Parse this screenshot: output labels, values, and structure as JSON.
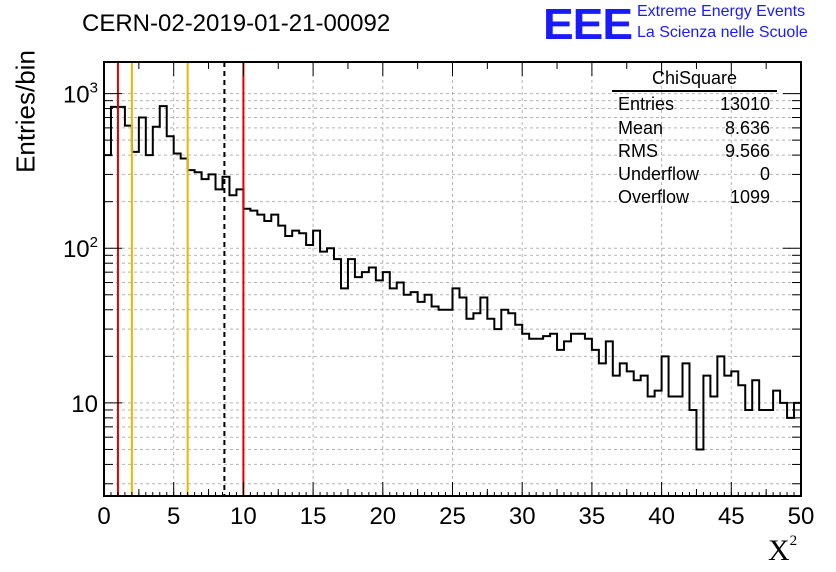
{
  "header": {
    "title": "CERN-02-2019-01-21-00092",
    "logo_text": "EEE",
    "brand_line1": "Extreme Energy Events",
    "brand_line2": "La Scienza nelle Scuole"
  },
  "stats": {
    "title": "ChiSquare",
    "rows": [
      {
        "label": "Entries",
        "value": "13010"
      },
      {
        "label": "Mean",
        "value": "8.636"
      },
      {
        "label": "RMS",
        "value": "9.566"
      },
      {
        "label": "Underflow",
        "value": "0"
      },
      {
        "label": "Overflow",
        "value": "1099"
      }
    ]
  },
  "chart_data": {
    "type": "histogram",
    "title": "CERN-02-2019-01-21-00092",
    "xlabel": "X",
    "xlabel_superscript": "2",
    "ylabel": "Entries/bin",
    "xlim": [
      0,
      50
    ],
    "ylim": [
      2.5,
      1600
    ],
    "yscale": "log",
    "bin_width": 0.5,
    "grid": true,
    "x_ticks": [
      "0",
      "5",
      "10",
      "15",
      "20",
      "25",
      "30",
      "35",
      "40",
      "45",
      "50"
    ],
    "y_tick_labels": [
      {
        "value": 1000,
        "base": "10",
        "exp": "3"
      },
      {
        "value": 100,
        "base": "10",
        "exp": "2"
      },
      {
        "value": 10,
        "base": "10",
        "exp": ""
      }
    ],
    "bin_counts": [
      400,
      820,
      820,
      620,
      420,
      700,
      400,
      610,
      830,
      530,
      410,
      380,
      320,
      310,
      280,
      300,
      240,
      290,
      220,
      240,
      180,
      175,
      165,
      150,
      165,
      140,
      120,
      130,
      125,
      105,
      130,
      95,
      100,
      85,
      55,
      85,
      65,
      70,
      75,
      62,
      70,
      55,
      60,
      50,
      52,
      45,
      50,
      42,
      40,
      40,
      55,
      48,
      35,
      38,
      48,
      35,
      30,
      40,
      38,
      32,
      28,
      26,
      26,
      27,
      28,
      22,
      25,
      28,
      28,
      26,
      22,
      18,
      25,
      15,
      18,
      16,
      14,
      15,
      11,
      12,
      20,
      11,
      11,
      18,
      9,
      5,
      15,
      11,
      20,
      15,
      16,
      13,
      9,
      14,
      9,
      9,
      12,
      10,
      8,
      10
    ],
    "vertical_lines": [
      {
        "x": 1.0,
        "color": "#e00000",
        "style": "solid"
      },
      {
        "x": 2.0,
        "color": "#f0b400",
        "style": "solid"
      },
      {
        "x": 6.0,
        "color": "#f0b400",
        "style": "solid"
      },
      {
        "x": 8.636,
        "color": "#000000",
        "style": "dashed"
      },
      {
        "x": 10.0,
        "color": "#e00000",
        "style": "solid"
      }
    ]
  }
}
